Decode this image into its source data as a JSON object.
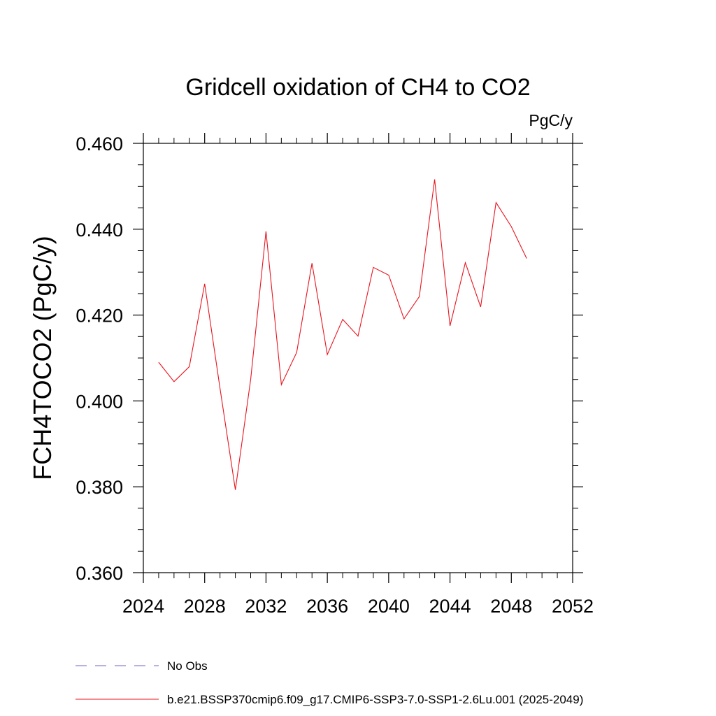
{
  "chart_data": {
    "type": "line",
    "title": "Gridcell oxidation of CH4 to CO2",
    "units": "PgC/y",
    "ylabel": "FCH4TOCO2  (PgC/y)",
    "xlabel": "",
    "xlim": [
      2024,
      2052
    ],
    "ylim": [
      0.36,
      0.46
    ],
    "x_ticks": [
      2024,
      2028,
      2032,
      2036,
      2040,
      2044,
      2048,
      2052
    ],
    "x_tick_labels": [
      "2024",
      "2028",
      "2032",
      "2036",
      "2040",
      "2044",
      "2048",
      "2052"
    ],
    "y_ticks": [
      0.36,
      0.38,
      0.4,
      0.42,
      0.44,
      0.46
    ],
    "y_tick_labels": [
      "0.360",
      "0.380",
      "0.400",
      "0.420",
      "0.440",
      "0.460"
    ],
    "grid": false,
    "legend_position": "bottom",
    "series": [
      {
        "name": "No Obs",
        "color": "#7060c0",
        "dash": true,
        "x": [],
        "values": []
      },
      {
        "name": "b.e21.BSSP370cmip6.f09_g17.CMIP6-SSP3-7.0-SSP1-2.6Lu.001 (2025-2049)",
        "color": "#e8141e",
        "dash": false,
        "x": [
          2025,
          2026,
          2027,
          2028,
          2029,
          2030,
          2031,
          2032,
          2033,
          2034,
          2035,
          2036,
          2037,
          2038,
          2039,
          2040,
          2041,
          2042,
          2043,
          2044,
          2045,
          2046,
          2047,
          2048,
          2049
        ],
        "values": [
          0.409,
          0.4045,
          0.408,
          0.4273,
          0.403,
          0.3793,
          0.405,
          0.4395,
          0.4038,
          0.4113,
          0.4321,
          0.4108,
          0.419,
          0.4151,
          0.4311,
          0.4293,
          0.4191,
          0.4243,
          0.4516,
          0.4175,
          0.4322,
          0.4219,
          0.4462,
          0.4406,
          0.4332
        ]
      }
    ]
  }
}
